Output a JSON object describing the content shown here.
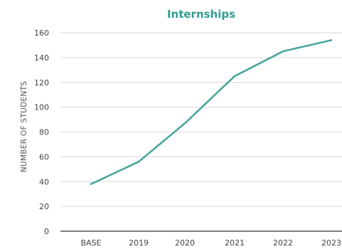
{
  "chart_data": {
    "type": "line",
    "title": "Internships",
    "xlabel": "",
    "ylabel": "NUMBER OF STUDENTS",
    "categories": [
      "BASE",
      "2019",
      "2020",
      "2021",
      "2022",
      "2023"
    ],
    "series": [
      {
        "values": [
          38,
          56,
          87,
          125,
          145,
          154
        ]
      }
    ],
    "ylim": [
      0,
      160
    ],
    "yticks": [
      "0",
      "20",
      "40",
      "60",
      "80",
      "100",
      "120",
      "140",
      "160"
    ],
    "grid": true,
    "colors": {
      "line": "#4aa79c",
      "title": "#2f9e8f"
    }
  }
}
